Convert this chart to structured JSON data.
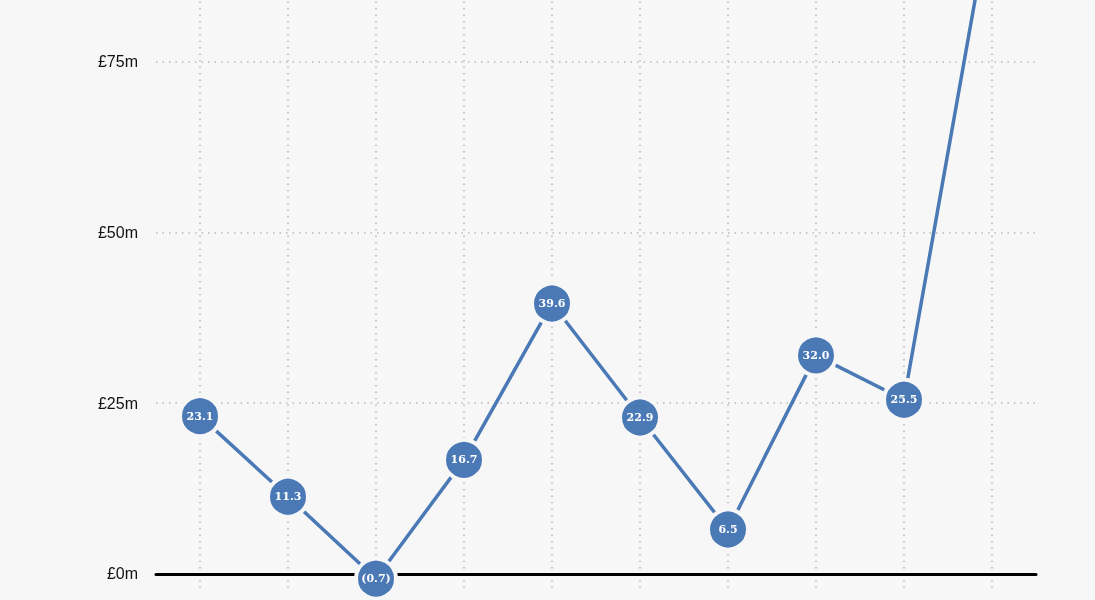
{
  "chart_data": {
    "type": "line",
    "categories": [
      null,
      null,
      null,
      null,
      null,
      null,
      null,
      null,
      null,
      null
    ],
    "series": [
      {
        "color": "#4a79b6",
        "values": [
          23.1,
          11.3,
          -0.7,
          16.7,
          39.6,
          22.9,
          6.5,
          32.0,
          25.5,
          98
        ],
        "value_labels": [
          "23.1",
          "11.3",
          "(0.7)",
          "16.7",
          "39.6",
          "22.9",
          "6.5",
          "32.0",
          "25.5",
          null
        ]
      }
    ],
    "ylim": [
      -2.65,
      100
    ],
    "yticks": [
      {
        "value": 0,
        "label": "£0m"
      },
      {
        "value": 25,
        "label": "£25m"
      },
      {
        "value": 50,
        "label": "£50m"
      },
      {
        "value": 75,
        "label": "£75m"
      }
    ],
    "grid": true,
    "marker": "circle",
    "line_style": "solid"
  }
}
